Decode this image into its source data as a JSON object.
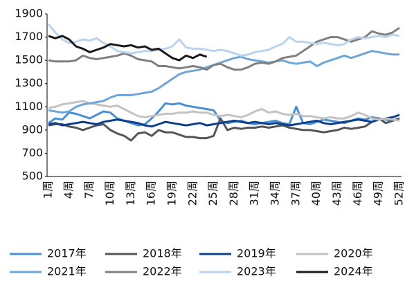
{
  "chart_data": {
    "type": "line",
    "categories": [
      "1周",
      null,
      null,
      "4周",
      null,
      null,
      "7周",
      null,
      null,
      "10周",
      null,
      null,
      "13周",
      null,
      null,
      "16周",
      null,
      null,
      "19周",
      null,
      null,
      "22周",
      null,
      null,
      "25周",
      null,
      null,
      "28周",
      null,
      null,
      "31周",
      null,
      null,
      "34周",
      null,
      null,
      "37周",
      null,
      null,
      "40周",
      null,
      null,
      "43周",
      null,
      null,
      "46周",
      null,
      null,
      "49周",
      null,
      null,
      "52周"
    ],
    "ylim": [
      500,
      1900
    ],
    "yticks": [
      500,
      700,
      900,
      1100,
      1300,
      1500,
      1700,
      1900
    ],
    "series": [
      {
        "name": "2017年",
        "color": "#4a8fd4",
        "values": [
          960,
          1000,
          990,
          1050,
          1040,
          1020,
          1000,
          1030,
          1060,
          1050,
          1000,
          980,
          960,
          940,
          950,
          1000,
          1060,
          1130,
          1120,
          1130,
          1110,
          1100,
          1090,
          1080,
          1070,
          980,
          960,
          970,
          980,
          960,
          950,
          960,
          970,
          980,
          960,
          950,
          1100,
          960,
          950,
          970,
          990,
          980,
          970,
          960,
          980,
          1000,
          990,
          1010,
          1000,
          990,
          980,
          1000
        ]
      },
      {
        "name": "2018年",
        "color": "#555555",
        "values": [
          940,
          950,
          950,
          930,
          920,
          900,
          920,
          940,
          950,
          900,
          870,
          850,
          810,
          870,
          880,
          850,
          900,
          880,
          880,
          860,
          840,
          840,
          830,
          830,
          850,
          1000,
          900,
          920,
          910,
          920,
          920,
          930,
          920,
          930,
          940,
          920,
          910,
          900,
          900,
          890,
          880,
          890,
          900,
          920,
          910,
          920,
          930,
          970,
          1000,
          960,
          980,
          1000
        ]
      },
      {
        "name": "2019年",
        "color": "#0e3f8c",
        "values": [
          950,
          960,
          940,
          950,
          960,
          970,
          960,
          950,
          970,
          980,
          990,
          980,
          970,
          960,
          940,
          930,
          950,
          970,
          960,
          950,
          940,
          950,
          960,
          940,
          950,
          960,
          970,
          980,
          970,
          960,
          970,
          960,
          950,
          960,
          950,
          940,
          950,
          960,
          970,
          980,
          960,
          950,
          960,
          970,
          980,
          990,
          980,
          970,
          990,
          1000,
          1010,
          1030
        ]
      },
      {
        "name": "2020年",
        "color": "#c3c3c3",
        "values": [
          1090,
          1100,
          1120,
          1130,
          1140,
          1150,
          1130,
          1120,
          1110,
          1100,
          1110,
          1080,
          1050,
          1020,
          1010,
          1020,
          1030,
          1040,
          1040,
          1050,
          1050,
          1060,
          1050,
          1050,
          1030,
          1020,
          1030,
          1020,
          1010,
          1030,
          1060,
          1080,
          1050,
          1060,
          1040,
          1030,
          1040,
          1020,
          1020,
          1010,
          1000,
          1010,
          1000,
          1000,
          1020,
          1050,
          1030,
          1000,
          990,
          1000,
          990,
          980
        ]
      },
      {
        "name": "2021年",
        "color": "#6ea6d8",
        "values": [
          1070,
          1060,
          1050,
          1060,
          1100,
          1120,
          1130,
          1140,
          1150,
          1180,
          1200,
          1200,
          1200,
          1210,
          1220,
          1230,
          1260,
          1300,
          1340,
          1380,
          1400,
          1410,
          1420,
          1440,
          1460,
          1480,
          1500,
          1520,
          1530,
          1510,
          1500,
          1490,
          1480,
          1490,
          1500,
          1480,
          1470,
          1480,
          1490,
          1450,
          1480,
          1500,
          1520,
          1540,
          1520,
          1540,
          1560,
          1580,
          1570,
          1560,
          1550,
          1550
        ]
      },
      {
        "name": "2022年",
        "color": "#808080",
        "values": [
          1500,
          1490,
          1490,
          1490,
          1500,
          1540,
          1520,
          1510,
          1520,
          1530,
          1540,
          1560,
          1540,
          1510,
          1500,
          1490,
          1450,
          1450,
          1440,
          1430,
          1440,
          1450,
          1440,
          1420,
          1460,
          1470,
          1440,
          1420,
          1420,
          1440,
          1470,
          1480,
          1470,
          1490,
          1520,
          1530,
          1540,
          1580,
          1620,
          1660,
          1680,
          1700,
          1700,
          1680,
          1660,
          1680,
          1700,
          1750,
          1730,
          1720,
          1740,
          1780
        ]
      },
      {
        "name": "2023年",
        "color": "#bcd3ee",
        "values": [
          1810,
          1740,
          1680,
          1650,
          1660,
          1680,
          1670,
          1690,
          1650,
          1620,
          1580,
          1570,
          1560,
          1570,
          1580,
          1580,
          1590,
          1600,
          1620,
          1680,
          1610,
          1600,
          1600,
          1590,
          1580,
          1590,
          1580,
          1560,
          1540,
          1550,
          1570,
          1580,
          1590,
          1620,
          1640,
          1700,
          1660,
          1660,
          1650,
          1640,
          1650,
          1640,
          1630,
          1640,
          1680,
          1700,
          1690,
          1700,
          1710,
          1700,
          1720,
          1710
        ]
      },
      {
        "name": "2024年",
        "color": "#1a1a1a",
        "values": [
          1710,
          1690,
          1710,
          1680,
          1620,
          1600,
          1570,
          1590,
          1610,
          1640,
          1630,
          1620,
          1630,
          1610,
          1620,
          1590,
          1600,
          1560,
          1520,
          1500,
          1540,
          1520,
          1550,
          1530,
          null,
          null,
          null,
          null,
          null,
          null,
          null,
          null,
          null,
          null,
          null,
          null,
          null,
          null,
          null,
          null,
          null,
          null,
          null,
          null,
          null,
          null,
          null,
          null,
          null,
          null,
          null,
          null
        ]
      }
    ]
  }
}
